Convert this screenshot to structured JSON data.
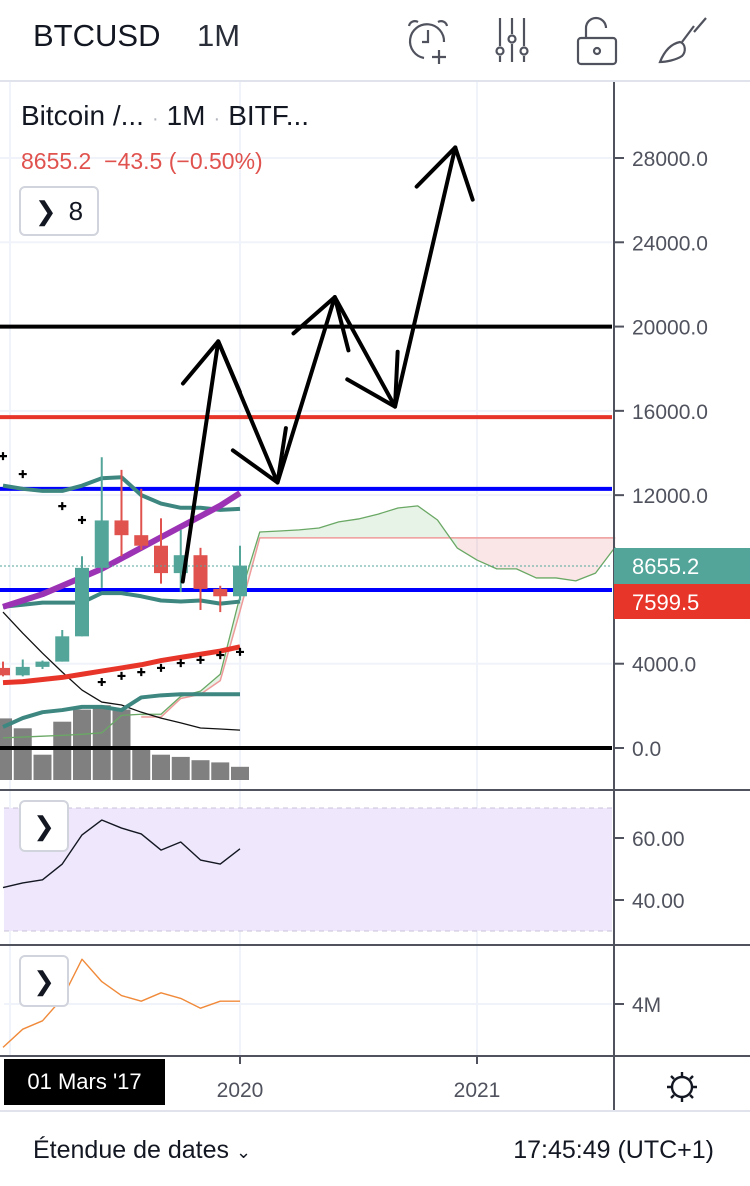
{
  "header": {
    "symbol": "BTCUSD",
    "interval": "1M",
    "icons": [
      "alarm-add-icon",
      "indicators-sliders-icon",
      "unlock-icon",
      "drawing-brush-icon"
    ]
  },
  "legend": {
    "name": "Bitcoin /...",
    "interval": "1M",
    "exchange": "BITF...",
    "separator": "·",
    "price": "8655.2",
    "change": "−43.5",
    "change_pct": "(−0.50%)",
    "indicators_count": "8"
  },
  "colors": {
    "up": "#53a59a",
    "down": "#e0524e",
    "blue_line": "#0000ff",
    "red_line": "#e8352a",
    "purple_ma": "#9c33b5",
    "teal_band": "#3d8780",
    "rsi_bg": "#efe8fc",
    "volume_osc": "#f08a3a"
  },
  "chart_data": {
    "type": "candlestick",
    "interval": "1M",
    "start_month": "2019-01",
    "price_axis": {
      "ticks": [
        "28000.0",
        "24000.0",
        "20000.0",
        "16000.0",
        "12000.0",
        "4000.0",
        "0.0"
      ],
      "tick_values": [
        28000,
        24000,
        20000,
        16000,
        12000,
        4000,
        0
      ],
      "range": [
        0,
        28000
      ]
    },
    "time_axis": {
      "ticks": [
        "2020",
        "2021"
      ],
      "crosshair_label": "01 Mars '17"
    },
    "last_price_label": "8655.2",
    "secondary_price_label": "7599.5",
    "candles": [
      {
        "o": 3800,
        "h": 4100,
        "l": 3400,
        "c": 3450
      },
      {
        "o": 3450,
        "h": 4200,
        "l": 3400,
        "c": 3850
      },
      {
        "o": 3850,
        "h": 4150,
        "l": 3750,
        "c": 4100
      },
      {
        "o": 4100,
        "h": 5600,
        "l": 4100,
        "c": 5300
      },
      {
        "o": 5300,
        "h": 9100,
        "l": 5300,
        "c": 8550
      },
      {
        "o": 8550,
        "h": 13800,
        "l": 7600,
        "c": 10800
      },
      {
        "o": 10800,
        "h": 13200,
        "l": 9100,
        "c": 10100
      },
      {
        "o": 10100,
        "h": 12300,
        "l": 9400,
        "c": 9600
      },
      {
        "o": 9600,
        "h": 10900,
        "l": 7800,
        "c": 8300
      },
      {
        "o": 8300,
        "h": 10350,
        "l": 7400,
        "c": 9150
      },
      {
        "o": 9150,
        "h": 9500,
        "l": 6550,
        "c": 7550
      },
      {
        "o": 7550,
        "h": 7700,
        "l": 6450,
        "c": 7200
      },
      {
        "o": 7200,
        "h": 9600,
        "l": 7000,
        "c": 8655.2
      }
    ],
    "volume_bars_relative": [
      0.56,
      0.47,
      0.23,
      0.53,
      0.64,
      0.68,
      0.64,
      0.28,
      0.23,
      0.21,
      0.18,
      0.16,
      0.12
    ],
    "horizontal_lines": [
      {
        "price": 20000,
        "color": "#000000"
      },
      {
        "price": 15700,
        "color": "#e8352a"
      },
      {
        "price": 12300,
        "color": "#0000ff"
      },
      {
        "price": 7500,
        "color": "#0000ff"
      },
      {
        "price": 0,
        "color": "#000000"
      }
    ],
    "indicators": {
      "purple_ma": [
        6700,
        7000,
        7300,
        7700,
        8100,
        8500,
        9000,
        9500,
        10000,
        10500,
        11000,
        11500,
        12100
      ],
      "red_ma": [
        3100,
        3150,
        3250,
        3350,
        3500,
        3650,
        3800,
        3950,
        4150,
        4300,
        4450,
        4600,
        4800
      ],
      "band_upper": [
        12450,
        12300,
        12200,
        12200,
        12450,
        12800,
        12850,
        12000,
        11600,
        11400,
        11400,
        11300,
        11350
      ],
      "band_lower": [
        6700,
        6800,
        6900,
        6900,
        6900,
        7350,
        7350,
        7200,
        7000,
        6950,
        7000,
        6850,
        6950
      ],
      "teal_base": [
        1000,
        1420,
        1700,
        1800,
        1950,
        1950,
        1800,
        2400,
        2500,
        2550,
        2550,
        2550,
        2550
      ],
      "thin_black": [
        6450,
        5450,
        4500,
        3600,
        2750,
        2180,
        2040,
        1700,
        1420,
        1190,
        950,
        900,
        850
      ],
      "sar": [
        {
          "i": 0,
          "v": 13850
        },
        {
          "i": 1,
          "v": 13000
        },
        {
          "i": 3,
          "v": 11480
        },
        {
          "i": 4,
          "v": 10820
        },
        {
          "i": 5,
          "v": 3130
        },
        {
          "i": 6,
          "v": 3420
        },
        {
          "i": 7,
          "v": 3600
        },
        {
          "i": 8,
          "v": 3800
        },
        {
          "i": 9,
          "v": 4030
        },
        {
          "i": 10,
          "v": 4180
        },
        {
          "i": 11,
          "v": 4410
        },
        {
          "i": 12,
          "v": 4560
        }
      ],
      "cloud_span_a": [
        480,
        520,
        560,
        600,
        650,
        720,
        1550,
        1600,
        1600,
        2450,
        2700,
        3500,
        7200,
        10250,
        10300,
        10350,
        10440,
        10730,
        10870,
        11100,
        11390,
        11490,
        10820,
        9490,
        8920,
        8500,
        8500,
        8070,
        8070,
        7930,
        8300,
        9540
      ],
      "cloud_span_b_start": 7,
      "cloud_span_b": [
        1470,
        1470,
        2350,
        2550,
        3200,
        6500,
        9970,
        9970,
        9970,
        9970,
        9970,
        9970,
        9970,
        9970,
        9970,
        9970,
        9970,
        9970,
        9970,
        9970,
        9970,
        9970,
        9970,
        9970,
        9970
      ]
    },
    "drawing_path_prices": [
      {
        "i": 9.1,
        "v": 7900
      },
      {
        "i": 10.9,
        "v": 19300
      },
      {
        "i": 13.9,
        "v": 12600
      },
      {
        "i": 16.8,
        "v": 21400
      },
      {
        "i": 19.85,
        "v": 16200
      },
      {
        "i": 22.9,
        "v": 28500
      }
    ],
    "rsi": {
      "ticks": [
        "60.00",
        "40.00"
      ],
      "band": [
        30,
        70
      ],
      "values": [
        44,
        45.5,
        46.5,
        51.6,
        61,
        65.8,
        63.2,
        61.3,
        56.1,
        58.7,
        52.9,
        51.6,
        56.5
      ]
    },
    "volume_osc": {
      "ticks": [
        "4M"
      ],
      "values_m": [
        0.9,
        2.2,
        2.8,
        4.4,
        7.2,
        5.6,
        4.6,
        4.2,
        4.8,
        4.4,
        3.7,
        4.2,
        4.2
      ]
    }
  },
  "footer": {
    "date_range": "Étendue de dates",
    "clock": "17:45:49 (UTC+1)"
  }
}
